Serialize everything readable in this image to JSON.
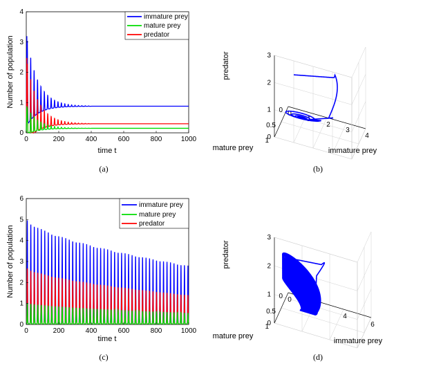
{
  "colors": {
    "immature": "#0000ff",
    "mature": "#00dd00",
    "predator": "#ff0000",
    "axis": "#000000",
    "grid": "#d0d0d0"
  },
  "chart_data": [
    {
      "id": "a",
      "type": "line",
      "caption": "(a)",
      "xlabel": "time t",
      "ylabel": "Number of population",
      "xlim": [
        0,
        1000
      ],
      "ylim": [
        0,
        4
      ],
      "xticks": [
        "0",
        "200",
        "400",
        "600",
        "800",
        "1000"
      ],
      "yticks": [
        "0",
        "1",
        "2",
        "3",
        "4"
      ],
      "legend": [
        "immature prey",
        "mature prey",
        "predator"
      ],
      "series": [
        {
          "name": "immature prey",
          "initial_peak": 3.55,
          "equilibrium": 0.88,
          "oscillation": "damped",
          "period": 21,
          "decay_to": 400
        },
        {
          "name": "mature prey",
          "initial_peak": 0.98,
          "equilibrium": 0.15,
          "oscillation": "damped",
          "period": 21,
          "decay_to": 400
        },
        {
          "name": "predator",
          "initial_peak": 2.75,
          "equilibrium": 0.3,
          "oscillation": "damped",
          "period": 21,
          "decay_to": 400
        }
      ]
    },
    {
      "id": "b",
      "type": "line3d",
      "caption": "(b)",
      "xlabel": "immature prey",
      "ylabel": "mature prey",
      "zlabel": "predator",
      "xlim": [
        0,
        4
      ],
      "ylim": [
        0,
        1
      ],
      "zlim": [
        0,
        3
      ],
      "xticks": [
        "0",
        "1",
        "2",
        "3",
        "4"
      ],
      "yticks": [
        "0",
        "0.5",
        "1"
      ],
      "zticks": [
        "0",
        "1",
        "2",
        "3"
      ],
      "trajectory": "spiral to stable equilibrium"
    },
    {
      "id": "c",
      "type": "line",
      "caption": "(c)",
      "xlabel": "time t",
      "ylabel": "Number of population",
      "xlim": [
        0,
        1000
      ],
      "ylim": [
        0,
        6
      ],
      "xticks": [
        "0",
        "200",
        "400",
        "600",
        "800",
        "1000"
      ],
      "yticks": [
        "0",
        "1",
        "2",
        "3",
        "4",
        "5",
        "6"
      ],
      "legend": [
        "immature prey",
        "mature prey",
        "predator"
      ],
      "series": [
        {
          "name": "immature prey",
          "peak_start": 5.1,
          "peak_end": 2.8,
          "oscillation": "sustained",
          "period": 21.5
        },
        {
          "name": "mature prey",
          "peak_start": 1.05,
          "peak_end": 0.55,
          "oscillation": "sustained",
          "period": 21.5
        },
        {
          "name": "predator",
          "peak_start": 2.75,
          "peak_end": 1.4,
          "oscillation": "sustained",
          "period": 21.5
        }
      ]
    },
    {
      "id": "d",
      "type": "line3d",
      "caption": "(d)",
      "xlabel": "immature prey",
      "ylabel": "mature prey",
      "zlabel": "predator",
      "xlim": [
        0,
        6
      ],
      "ylim": [
        0,
        1
      ],
      "zlim": [
        0,
        3
      ],
      "xticks": [
        "0",
        "2",
        "4",
        "6"
      ],
      "yticks": [
        "0",
        "0.5",
        "1"
      ],
      "zticks": [
        "0",
        "1",
        "2",
        "3"
      ],
      "trajectory": "converges to limit cycle"
    }
  ]
}
